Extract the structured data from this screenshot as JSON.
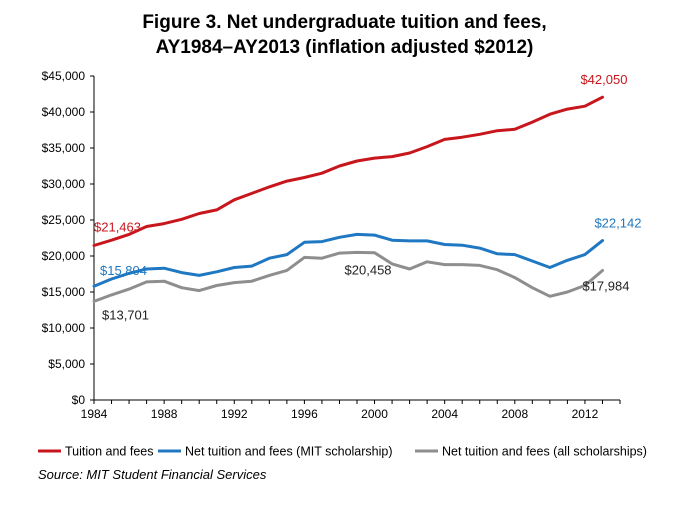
{
  "title_line1": "Figure 3. Net undergraduate tuition and fees,",
  "title_line2": "AY1984–AY2013 (inflation adjusted $2012)",
  "source": "Source: MIT Student Financial Services",
  "chart_data": {
    "type": "line",
    "title": "Figure 3. Net undergraduate tuition and fees, AY1984–AY2013 (inflation adjusted $2012)",
    "xlabel": "",
    "ylabel": "",
    "xlim": [
      1984,
      2014
    ],
    "ylim": [
      0,
      45000
    ],
    "x_ticks": [
      "1984",
      "1988",
      "1992",
      "1996",
      "2000",
      "2004",
      "2008",
      "2012"
    ],
    "y_ticks": [
      "$0",
      "$5,000",
      "$10,000",
      "$15,000",
      "$20,000",
      "$25,000",
      "$30,000",
      "$35,000",
      "$40,000",
      "$45,000"
    ],
    "grid": false,
    "legend_position": "bottom",
    "x": [
      1984,
      1985,
      1986,
      1987,
      1988,
      1989,
      1990,
      1991,
      1992,
      1993,
      1994,
      1995,
      1996,
      1997,
      1998,
      1999,
      2000,
      2001,
      2002,
      2003,
      2004,
      2005,
      2006,
      2007,
      2008,
      2009,
      2010,
      2011,
      2012,
      2013
    ],
    "series": [
      {
        "name": "Tuition and fees",
        "color": "#c8161d",
        "values": [
          21463,
          22200,
          23000,
          24100,
          24500,
          25100,
          25900,
          26400,
          27800,
          28700,
          29600,
          30400,
          30900,
          31500,
          32500,
          33200,
          33600,
          33800,
          34300,
          35200,
          36200,
          36500,
          36900,
          37400,
          37600,
          38600,
          39700,
          40400,
          40800,
          42050
        ]
      },
      {
        "name": "Net tuition and fees (MIT scholarship)",
        "color": "#1f78c1",
        "values": [
          15804,
          16800,
          17600,
          18200,
          18300,
          17700,
          17300,
          17800,
          18400,
          18600,
          19700,
          20200,
          21900,
          22000,
          22600,
          23000,
          22900,
          22200,
          22100,
          22100,
          21600,
          21500,
          21100,
          20300,
          20200,
          19300,
          18400,
          19400,
          20200,
          22142
        ]
      },
      {
        "name": "Net tuition and fees (all scholarships)",
        "color": "#8e8e8e",
        "values": [
          13701,
          14600,
          15400,
          16400,
          16500,
          15600,
          15200,
          15900,
          16300,
          16500,
          17300,
          18000,
          19800,
          19700,
          20400,
          20500,
          20458,
          18900,
          18200,
          19200,
          18800,
          18800,
          18700,
          18100,
          17000,
          15600,
          14400,
          15000,
          15900,
          17984
        ]
      }
    ],
    "annotations": [
      {
        "text": "$21,463",
        "series": 0,
        "x": 1984
      },
      {
        "text": "$42,050",
        "series": 0,
        "x": 2013
      },
      {
        "text": "$15,804",
        "series": 1,
        "x": 1984
      },
      {
        "text": "$22,142",
        "series": 1,
        "x": 2013
      },
      {
        "text": "$13,701",
        "series": 2,
        "x": 1984
      },
      {
        "text": "$20,458",
        "series": 2,
        "x": 2000
      },
      {
        "text": "$17,984",
        "series": 2,
        "x": 2013
      }
    ]
  }
}
